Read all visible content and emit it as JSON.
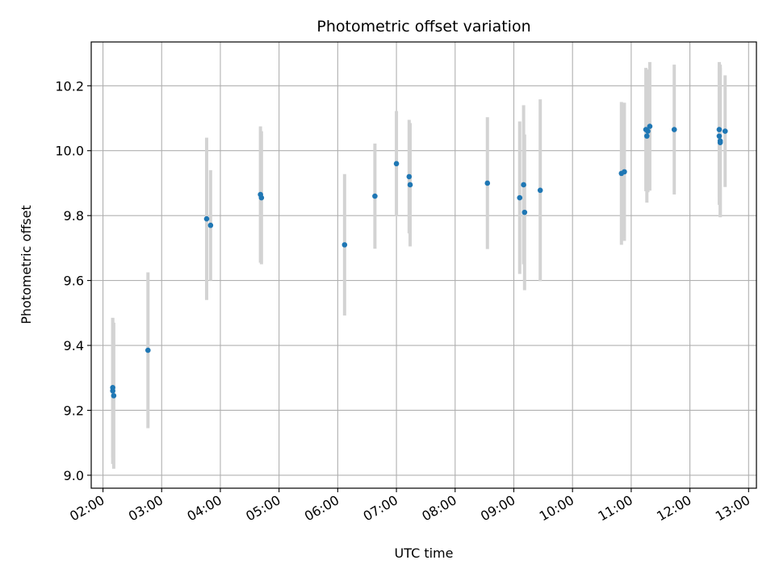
{
  "chart_data": {
    "type": "scatter",
    "title": "Photometric offset variation",
    "xlabel": "UTC time",
    "ylabel": "Photometric offset",
    "xlim": [
      "01:48",
      "13:08"
    ],
    "ylim": [
      8.96,
      10.335
    ],
    "x_ticks": [
      "02:00",
      "03:00",
      "04:00",
      "05:00",
      "06:00",
      "07:00",
      "08:00",
      "09:00",
      "10:00",
      "11:00",
      "12:00",
      "13:00"
    ],
    "y_ticks": [
      "9.0",
      "9.2",
      "9.4",
      "9.6",
      "9.8",
      "10.0",
      "10.2"
    ],
    "grid": true,
    "colors": {
      "point": "#1f77b4",
      "errorbar": "#d3d3d3",
      "grid": "#b0b0b0"
    },
    "points": [
      {
        "x": "02:10",
        "y": 9.26,
        "err": 0.225
      },
      {
        "x": "02:10",
        "y": 9.27,
        "err": 0.215
      },
      {
        "x": "02:11",
        "y": 9.245,
        "err": 0.225
      },
      {
        "x": "02:46",
        "y": 9.385,
        "err": 0.24
      },
      {
        "x": "03:46",
        "y": 9.79,
        "err": 0.25
      },
      {
        "x": "03:50",
        "y": 9.77,
        "err": 0.17
      },
      {
        "x": "04:41",
        "y": 9.865,
        "err": 0.21
      },
      {
        "x": "04:42",
        "y": 9.855,
        "err": 0.205
      },
      {
        "x": "06:07",
        "y": 9.71,
        "err": 0.218
      },
      {
        "x": "06:38",
        "y": 9.86,
        "err": 0.162
      },
      {
        "x": "07:00",
        "y": 9.96,
        "err": 0.162
      },
      {
        "x": "07:13",
        "y": 9.92,
        "err": 0.175
      },
      {
        "x": "07:14",
        "y": 9.895,
        "err": 0.19
      },
      {
        "x": "08:33",
        "y": 9.9,
        "err": 0.203
      },
      {
        "x": "09:06",
        "y": 9.855,
        "err": 0.235
      },
      {
        "x": "09:10",
        "y": 9.895,
        "err": 0.245
      },
      {
        "x": "09:11",
        "y": 9.81,
        "err": 0.24
      },
      {
        "x": "09:27",
        "y": 9.878,
        "err": 0.28
      },
      {
        "x": "10:50",
        "y": 9.93,
        "err": 0.22
      },
      {
        "x": "10:53",
        "y": 9.935,
        "err": 0.213
      },
      {
        "x": "11:15",
        "y": 10.065,
        "err": 0.19
      },
      {
        "x": "11:16",
        "y": 10.045,
        "err": 0.205
      },
      {
        "x": "11:17",
        "y": 10.06,
        "err": 0.188
      },
      {
        "x": "11:19",
        "y": 10.075,
        "err": 0.198
      },
      {
        "x": "11:44",
        "y": 10.065,
        "err": 0.2
      },
      {
        "x": "12:30",
        "y": 10.065,
        "err": 0.208
      },
      {
        "x": "12:30",
        "y": 10.045,
        "err": 0.212
      },
      {
        "x": "12:31",
        "y": 10.03,
        "err": 0.235
      },
      {
        "x": "12:31",
        "y": 10.025,
        "err": 0.23
      },
      {
        "x": "12:36",
        "y": 10.06,
        "err": 0.172
      }
    ]
  }
}
